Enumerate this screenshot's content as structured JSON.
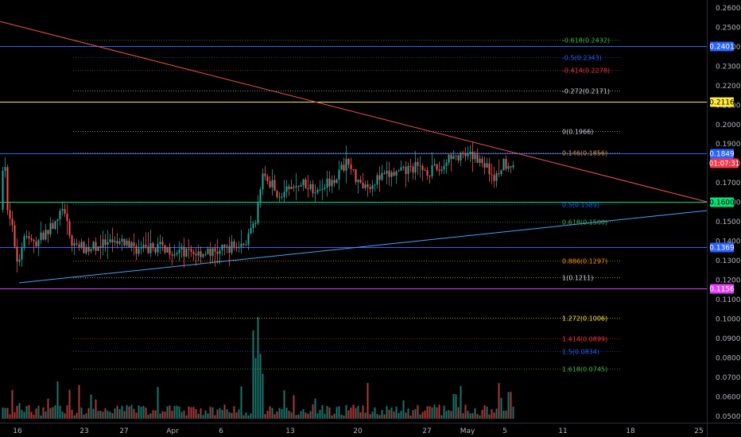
{
  "chart_data": {
    "type": "candlestick",
    "price_axis": {
      "ticks": [
        "0.2600",
        "0.2500",
        "0.2400",
        "0.2300",
        "0.2200",
        "0.2100",
        "0.2000",
        "0.1900",
        "0.1800",
        "0.1700",
        "0.1600",
        "0.1500",
        "0.1400",
        "0.1300",
        "0.1200",
        "0.1100",
        "0.1000",
        "0.0900",
        "0.0800",
        "0.0700",
        "0.0600",
        "0.0500"
      ],
      "range": [
        0.049,
        0.263
      ]
    },
    "time_axis": {
      "labels": [
        "16",
        "23",
        "27",
        "Apr",
        "6",
        "13",
        "20",
        "27",
        "May",
        "5",
        "11",
        "18",
        "25"
      ]
    },
    "fib_levels": [
      {
        "label": "-0.618(0.2432)",
        "value": 0.2432,
        "color": "#4caf50"
      },
      {
        "label": "-0.5(0.2343)",
        "value": 0.2343,
        "color": "#2962ff"
      },
      {
        "label": "-0.414(0.2278)",
        "value": 0.2278,
        "color": "#f23645"
      },
      {
        "label": "-0.272(0.2171)",
        "value": 0.2171,
        "color": "#d1d4dc"
      },
      {
        "label": "0(0.1966)",
        "value": 0.1966,
        "color": "#d1d4dc"
      },
      {
        "label": "0.146(0.1856)",
        "value": 0.1856,
        "color": "#ff9800"
      },
      {
        "label": "0.5(0.1589)",
        "value": 0.1589,
        "color": "#2962ff"
      },
      {
        "label": "0.618(0.1500)",
        "value": 0.15,
        "color": "#4caf50"
      },
      {
        "label": "0.886(0.1297)",
        "value": 0.1297,
        "color": "#ff9800"
      },
      {
        "label": "1(0.1211)",
        "value": 0.1211,
        "color": "#d1d4dc"
      },
      {
        "label": "1.272(0.1006)",
        "value": 0.1006,
        "color": "#ffeb3b"
      },
      {
        "label": "1.414(0.0899)",
        "value": 0.0899,
        "color": "#f23645"
      },
      {
        "label": "1.5(0.0834)",
        "value": 0.0834,
        "color": "#2962ff"
      },
      {
        "label": "1.618(0.0745)",
        "value": 0.0745,
        "color": "#4caf50"
      }
    ],
    "horizontal_lines": [
      {
        "label": "0.2401",
        "value": 0.2401,
        "color": "#2962ff",
        "text_color": "#ffffff"
      },
      {
        "label": "0.2116",
        "value": 0.2116,
        "color": "#ffeb3b",
        "text_color": "#000000"
      },
      {
        "label": "0.1849",
        "value": 0.1849,
        "color": "#2962ff",
        "text_color": "#ffffff"
      },
      {
        "label": "0.1600",
        "value": 0.16,
        "color": "#00e676",
        "text_color": "#000000"
      },
      {
        "label": "0.1369",
        "value": 0.1369,
        "color": "#2962ff",
        "text_color": "#ffffff"
      },
      {
        "label": "0.1156",
        "value": 0.1156,
        "color": "#e040fb",
        "text_color": "#ffffff"
      }
    ],
    "current_price": {
      "label": "01:07:31",
      "color": "#f23645"
    },
    "trendlines": [
      {
        "color": "#ef5350"
      },
      {
        "color": "#42a5f5"
      }
    ],
    "colors": {
      "up": "#26a69a",
      "down": "#ef5350",
      "background": "#000000",
      "axis_text": "#b2b5be"
    }
  }
}
